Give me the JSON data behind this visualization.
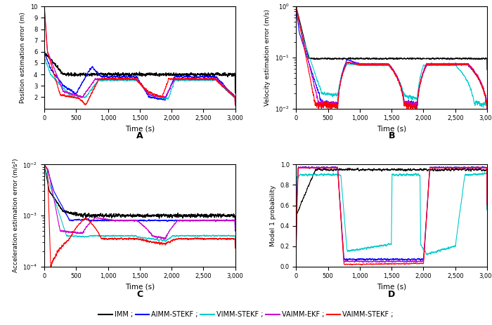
{
  "title_A": "A",
  "title_B": "B",
  "title_C": "C",
  "title_D": "D",
  "xlabel": "Time (s)",
  "ylabel_A": "Position estimation error (m)",
  "ylabel_B": "Velocity estimation error (m/s)",
  "ylabel_C": "Acceleration estimation error (m/s²)",
  "ylabel_D": "Model 1 probability",
  "xlim": [
    0,
    3000
  ],
  "colors": {
    "IMM": "#000000",
    "AIMM_STEKF": "#0000ff",
    "VIMM_STEKF": "#00cccc",
    "VAIMM_EKF": "#cc00cc",
    "VAIMM_STEKF": "#ff0000"
  },
  "legend_labels": [
    "IMM ;",
    "AIMM-STEKF ;",
    "VIMM-STEKF ;",
    "VAIMM-EKF ;",
    "VAIMM-STEKF ;"
  ],
  "legend_colors": [
    "#000000",
    "#0000ff",
    "#00cccc",
    "#cc00cc",
    "#ff0000"
  ]
}
